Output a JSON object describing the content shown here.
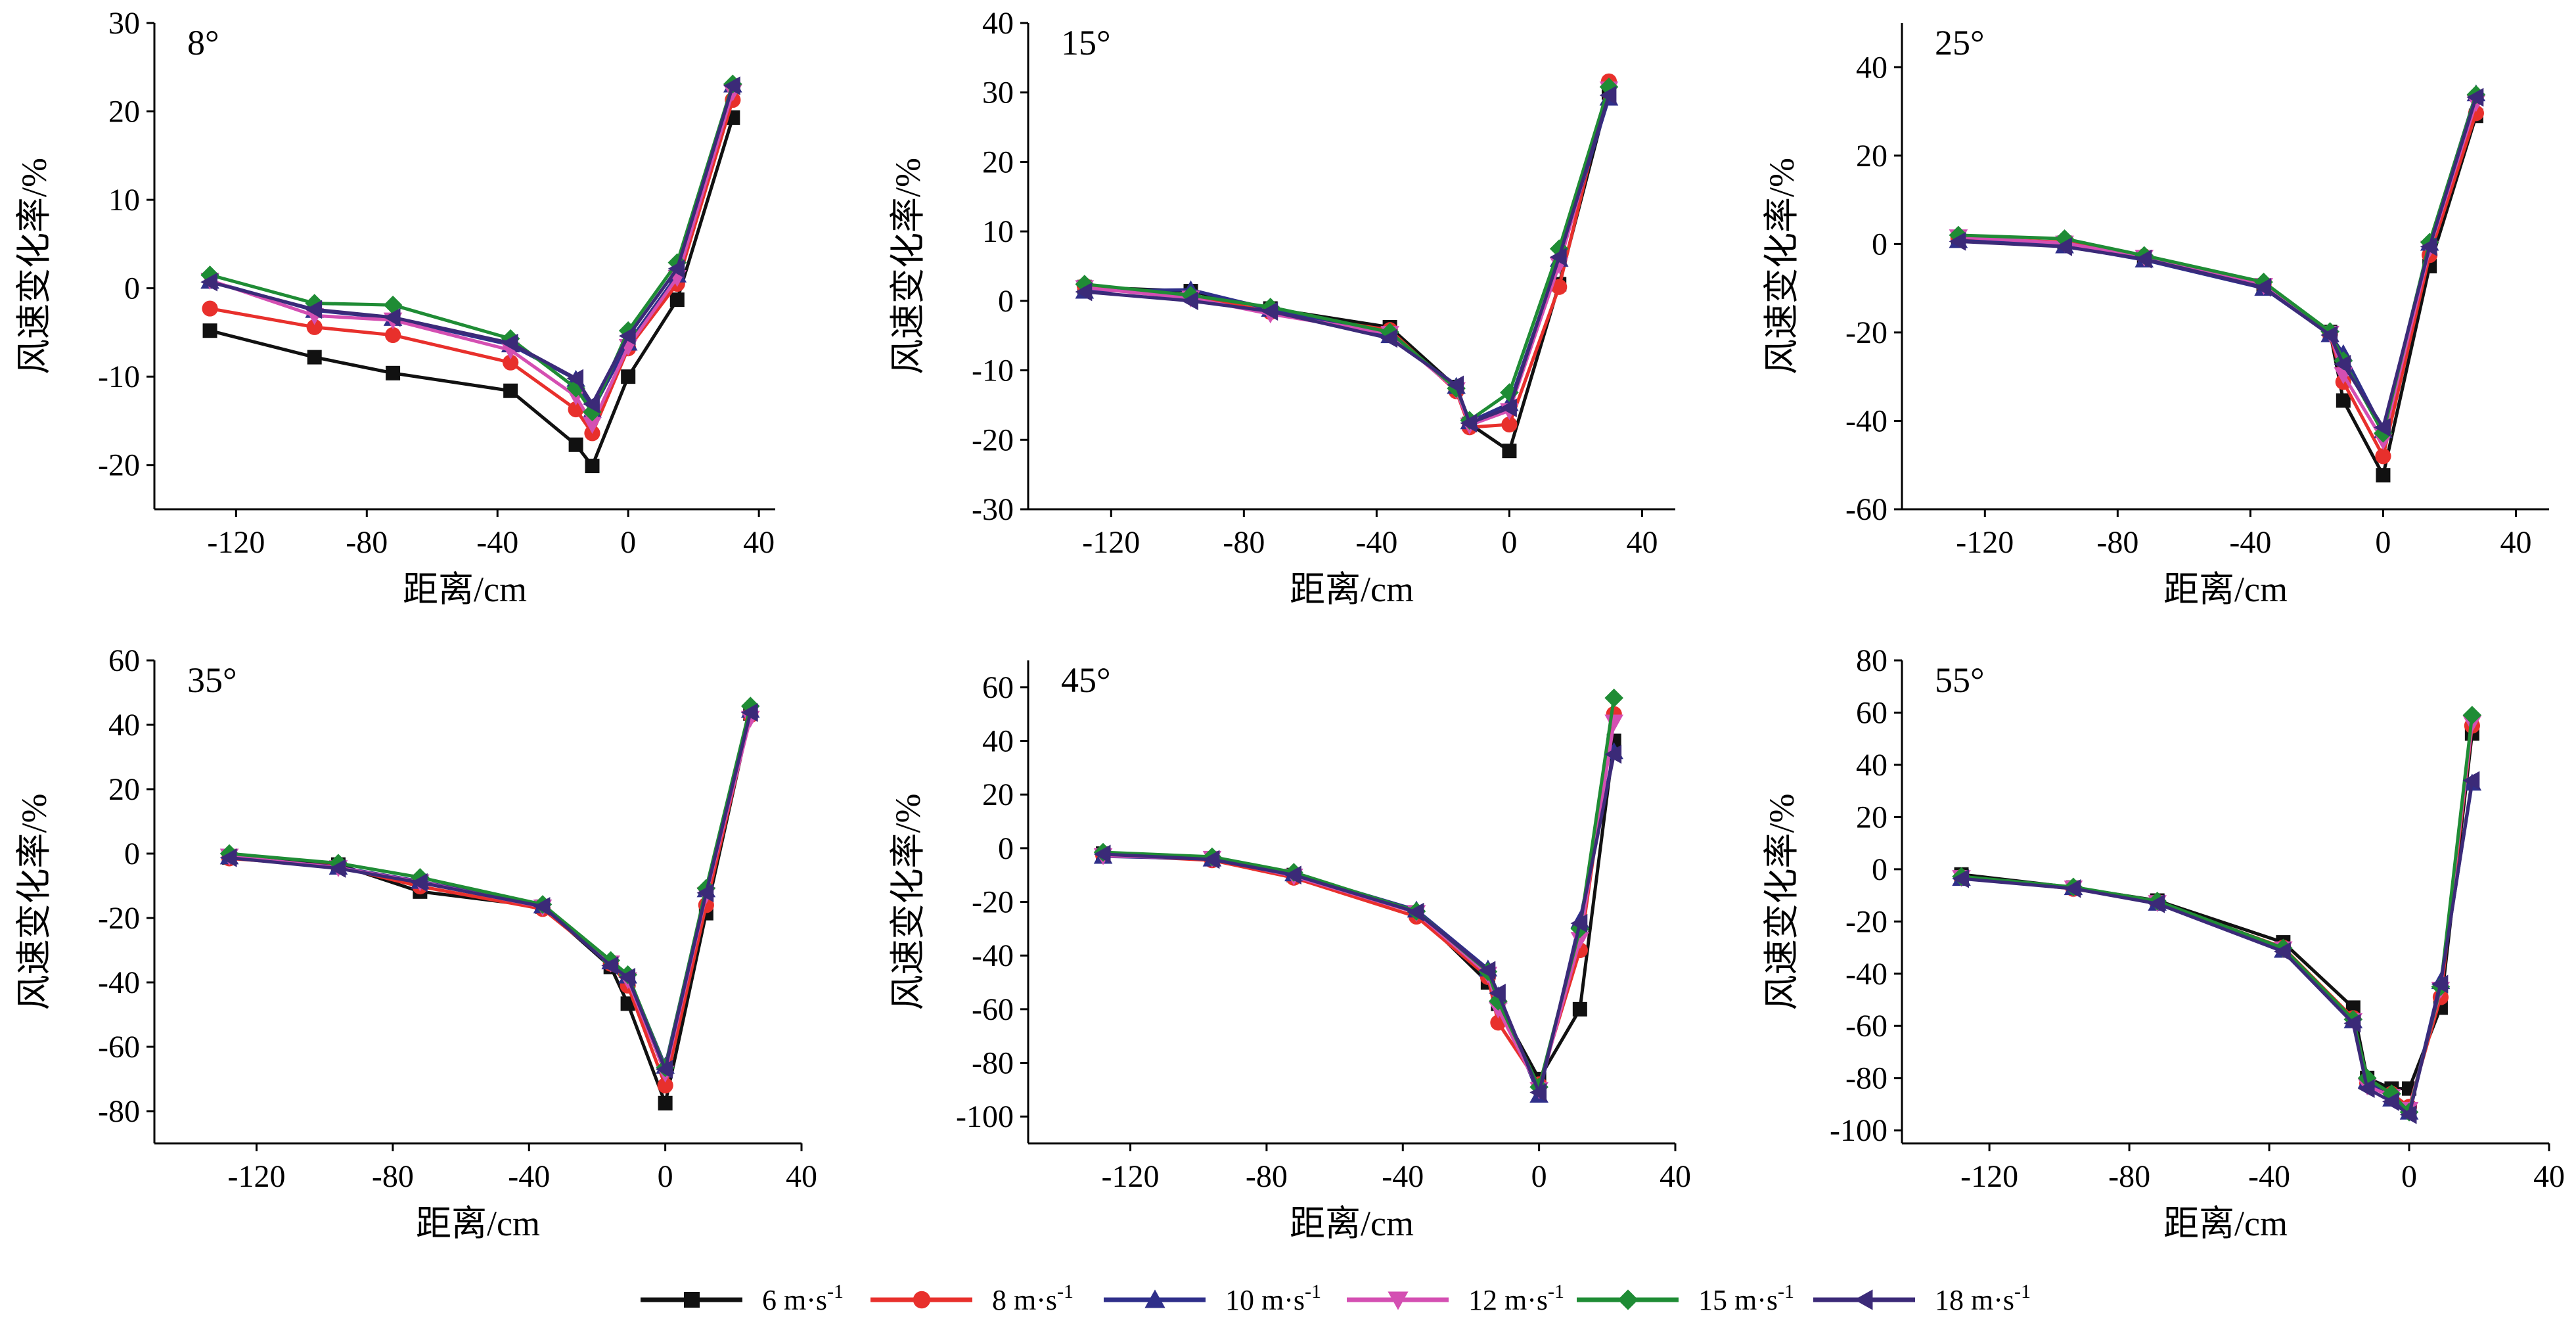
{
  "series_styles": [
    {
      "name": "6 m·s",
      "sup": "-1",
      "color": "#111111",
      "marker": "square"
    },
    {
      "name": "8 m·s",
      "sup": "-1",
      "color": "#e8302c",
      "marker": "circle"
    },
    {
      "name": "10 m·s",
      "sup": "-1",
      "color": "#2f2f8a",
      "marker": "triangle-up"
    },
    {
      "name": "12 m·s",
      "sup": "-1",
      "color": "#d44fb2",
      "marker": "triangle-down"
    },
    {
      "name": "15 m·s",
      "sup": "-1",
      "color": "#1f8c35",
      "marker": "diamond"
    },
    {
      "name": "18 m·s",
      "sup": "-1",
      "color": "#3b2a78",
      "marker": "triangle-left"
    }
  ],
  "chart_data": [
    {
      "type": "line",
      "angle_label": "8°",
      "xlabel": "距离/cm",
      "ylabel": "风速变化率/%",
      "xlim": [
        -145,
        45
      ],
      "ylim": [
        -25,
        30
      ],
      "xticks": [
        -120,
        -80,
        -40,
        0,
        40
      ],
      "yticks": [
        -20,
        -10,
        0,
        10,
        20,
        30
      ],
      "series": [
        {
          "x": [
            -128,
            -96,
            -72,
            -36,
            -16,
            -11,
            0,
            15,
            32
          ],
          "y": [
            -4.8,
            -7.8,
            -9.6,
            -11.6,
            -17.7,
            -20.1,
            -10,
            -1.3,
            19.3
          ]
        },
        {
          "x": [
            -128,
            -96,
            -72,
            -36,
            -16,
            -11,
            0,
            15,
            32
          ],
          "y": [
            -2.3,
            -4.4,
            -5.3,
            -8.4,
            -13.7,
            -16.4,
            -6.8,
            0.5,
            21.3
          ]
        },
        {
          "x": [
            -128,
            -96,
            -72,
            -36,
            -16,
            -11,
            0,
            15,
            32
          ],
          "y": [
            0.8,
            -2.5,
            -3.4,
            -6.4,
            -10.3,
            -13.8,
            -6.2,
            1.5,
            23
          ]
        },
        {
          "x": [
            -128,
            -96,
            -72,
            -36,
            -16,
            -11,
            0,
            15,
            32
          ],
          "y": [
            0.9,
            -3.1,
            -3.6,
            -7.0,
            -12.2,
            -15.4,
            -6.6,
            1.2,
            22.2
          ]
        },
        {
          "x": [
            -128,
            -96,
            -72,
            -36,
            -16,
            -11,
            0,
            15,
            32
          ],
          "y": [
            1.5,
            -1.7,
            -1.9,
            -5.7,
            -11.3,
            -14.0,
            -4.8,
            2.9,
            23.1
          ]
        },
        {
          "x": [
            -128,
            -96,
            -72,
            -36,
            -16,
            -11,
            0,
            15,
            32
          ],
          "y": [
            0.7,
            -2.4,
            -3.3,
            -6.2,
            -10.2,
            -13.1,
            -5.4,
            2.2,
            22.9
          ]
        }
      ]
    },
    {
      "type": "line",
      "angle_label": "15°",
      "xlabel": "距离/cm",
      "ylabel": "风速变化率/%",
      "xlim": [
        -145,
        50
      ],
      "ylim": [
        -30,
        40
      ],
      "xticks": [
        -120,
        -80,
        -40,
        0,
        40
      ],
      "yticks": [
        -30,
        -20,
        -10,
        0,
        10,
        20,
        30,
        40
      ],
      "series": [
        {
          "x": [
            -128,
            -96,
            -72,
            -36,
            -16,
            -12,
            0,
            15,
            30
          ],
          "y": [
            2,
            1.4,
            -1.1,
            -3.8,
            -12.4,
            -17.7,
            -21.6,
            2.4,
            30
          ]
        },
        {
          "x": [
            -128,
            -96,
            -72,
            -36,
            -16,
            -12,
            0,
            15,
            30
          ],
          "y": [
            2.2,
            0.8,
            -1.6,
            -4.2,
            -13.0,
            -18.2,
            -17.8,
            2.0,
            31.6
          ]
        },
        {
          "x": [
            -128,
            -96,
            -72,
            -36,
            -16,
            -12,
            0,
            15,
            30
          ],
          "y": [
            1.4,
            1.6,
            -1.2,
            -5.0,
            -12.3,
            -17.4,
            -14.8,
            6.0,
            29.2
          ]
        },
        {
          "x": [
            -128,
            -96,
            -72,
            -36,
            -16,
            -12,
            0,
            15,
            30
          ],
          "y": [
            1.9,
            0.4,
            -1.9,
            -4.7,
            -12.8,
            -17.9,
            -15.8,
            5.2,
            30.5
          ]
        },
        {
          "x": [
            -128,
            -96,
            -72,
            -36,
            -16,
            -12,
            0,
            15,
            30
          ],
          "y": [
            2.4,
            0.8,
            -0.9,
            -4.5,
            -12.6,
            -17.2,
            -13.2,
            7.5,
            30.8
          ]
        },
        {
          "x": [
            -128,
            -96,
            -72,
            -36,
            -16,
            -12,
            0,
            15,
            30
          ],
          "y": [
            1.3,
            0,
            -1.5,
            -5.4,
            -12.1,
            -17.6,
            -15.4,
            6.3,
            29.6
          ]
        }
      ]
    },
    {
      "type": "line",
      "angle_label": "25°",
      "xlabel": "距离/cm",
      "ylabel": "风速变化率/%",
      "xlim": [
        -145,
        50
      ],
      "ylim": [
        -60,
        50
      ],
      "xticks": [
        -120,
        -80,
        -40,
        0,
        40
      ],
      "yticks": [
        -60,
        -40,
        -20,
        0,
        20,
        40
      ],
      "series": [
        {
          "x": [
            -128,
            -96,
            -72,
            -36,
            -16,
            -12,
            0,
            14,
            28
          ],
          "y": [
            1,
            0.3,
            -3.2,
            -9.6,
            -19.9,
            -35.4,
            -52.3,
            -5.0,
            29
          ]
        },
        {
          "x": [
            -128,
            -96,
            -72,
            -36,
            -16,
            -12,
            0,
            14,
            28
          ],
          "y": [
            1.4,
            0.4,
            -2.8,
            -9.2,
            -20.4,
            -31.2,
            -48.0,
            -2.5,
            29.6
          ]
        },
        {
          "x": [
            -128,
            -96,
            -72,
            -36,
            -16,
            -12,
            0,
            14,
            28
          ],
          "y": [
            0.8,
            -0.4,
            -3.6,
            -10.0,
            -20.5,
            -24.8,
            -42.2,
            0.2,
            34.0
          ]
        },
        {
          "x": [
            -128,
            -96,
            -72,
            -36,
            -16,
            -12,
            0,
            14,
            28
          ],
          "y": [
            1.6,
            0.2,
            -3.0,
            -9.4,
            -20.2,
            -29.6,
            -44.5,
            -1.0,
            32.0
          ]
        },
        {
          "x": [
            -128,
            -96,
            -72,
            -36,
            -16,
            -12,
            0,
            14,
            28
          ],
          "y": [
            2.0,
            1.2,
            -2.6,
            -8.6,
            -19.8,
            -26.4,
            -42.8,
            0.4,
            33.8
          ]
        },
        {
          "x": [
            -128,
            -96,
            -72,
            -36,
            -16,
            -12,
            0,
            14,
            28
          ],
          "y": [
            0.6,
            -0.6,
            -3.4,
            -9.8,
            -20.6,
            -27.2,
            -41.5,
            -0.6,
            33.2
          ]
        }
      ]
    },
    {
      "type": "line",
      "angle_label": "35°",
      "xlabel": "距离/cm",
      "ylabel": "风速变化率/%",
      "xlim": [
        -150,
        40
      ],
      "ylim": [
        -90,
        60
      ],
      "xticks": [
        -120,
        -80,
        -40,
        0,
        40
      ],
      "yticks": [
        -80,
        -60,
        -40,
        -20,
        0,
        20,
        40,
        60
      ],
      "series": [
        {
          "x": [
            -128,
            -96,
            -72,
            -36,
            -16,
            -11,
            0,
            12,
            25
          ],
          "y": [
            -1.2,
            -3.4,
            -11.8,
            -16.5,
            -35.2,
            -46.6,
            -77.5,
            -18.5,
            43.5
          ]
        },
        {
          "x": [
            -128,
            -96,
            -72,
            -36,
            -16,
            -11,
            0,
            12,
            25
          ],
          "y": [
            -1.5,
            -4.0,
            -10.2,
            -17.2,
            -34.2,
            -41.0,
            -72.0,
            -16.0,
            43.0
          ]
        },
        {
          "x": [
            -128,
            -96,
            -72,
            -36,
            -16,
            -11,
            0,
            12,
            25
          ],
          "y": [
            -1.0,
            -4.2,
            -8.6,
            -16.2,
            -33.6,
            -38.0,
            -66.0,
            -11.2,
            44.5
          ]
        },
        {
          "x": [
            -128,
            -96,
            -72,
            -36,
            -16,
            -11,
            0,
            12,
            25
          ],
          "y": [
            -0.8,
            -4.4,
            -8.8,
            -16.6,
            -34.0,
            -39.2,
            -68.2,
            -12.8,
            42.0
          ]
        },
        {
          "x": [
            -128,
            -96,
            -72,
            -36,
            -16,
            -11,
            0,
            12,
            25
          ],
          "y": [
            0.0,
            -3.0,
            -7.4,
            -15.8,
            -33.2,
            -37.6,
            -66.5,
            -10.8,
            45.8
          ]
        },
        {
          "x": [
            -128,
            -96,
            -72,
            -36,
            -16,
            -11,
            0,
            12,
            25
          ],
          "y": [
            -1.3,
            -4.6,
            -9.0,
            -16.4,
            -34.8,
            -38.4,
            -67.0,
            -12.2,
            43.8
          ]
        }
      ]
    },
    {
      "type": "line",
      "angle_label": "45°",
      "xlabel": "距离/cm",
      "ylabel": "风速变化率/%",
      "xlim": [
        -150,
        40
      ],
      "ylim": [
        -110,
        70
      ],
      "xticks": [
        -120,
        -80,
        -40,
        0,
        40
      ],
      "yticks": [
        -100,
        -80,
        -60,
        -40,
        -20,
        0,
        20,
        40,
        60
      ],
      "series": [
        {
          "x": [
            -128,
            -96,
            -72,
            -36,
            -15,
            -12,
            0,
            12,
            22
          ],
          "y": [
            -2,
            -4,
            -10,
            -24,
            -50,
            -58,
            -86,
            -60,
            40
          ]
        },
        {
          "x": [
            -128,
            -96,
            -72,
            -36,
            -15,
            -12,
            0,
            12,
            22
          ],
          "y": [
            -2.5,
            -4.5,
            -11,
            -25.5,
            -48,
            -65,
            -88,
            -38,
            50
          ]
        },
        {
          "x": [
            -128,
            -96,
            -72,
            -36,
            -15,
            -12,
            0,
            12,
            22
          ],
          "y": [
            -3,
            -4,
            -9.5,
            -23,
            -45,
            -55,
            -92,
            -27,
            36
          ]
        },
        {
          "x": [
            -128,
            -96,
            -72,
            -36,
            -15,
            -12,
            0,
            12,
            22
          ],
          "y": [
            -2.8,
            -3.8,
            -10.4,
            -24,
            -47,
            -60,
            -90,
            -34,
            47
          ]
        },
        {
          "x": [
            -128,
            -96,
            -72,
            -36,
            -15,
            -12,
            0,
            12,
            22
          ],
          "y": [
            -1.5,
            -3.2,
            -9.0,
            -23.5,
            -46,
            -57,
            -89,
            -30,
            56
          ]
        },
        {
          "x": [
            -128,
            -96,
            -72,
            -36,
            -15,
            -12,
            0,
            12,
            22
          ],
          "y": [
            -2.2,
            -4.2,
            -10.0,
            -23.8,
            -45.5,
            -54,
            -91,
            -28,
            35
          ]
        }
      ]
    },
    {
      "type": "line",
      "angle_label": "55°",
      "xlabel": "距离/cm",
      "ylabel": "风速变化率/%",
      "xlim": [
        -145,
        40
      ],
      "ylim": [
        -105,
        80
      ],
      "xticks": [
        -120,
        -80,
        -40,
        0,
        40
      ],
      "yticks": [
        -100,
        -80,
        -60,
        -40,
        -20,
        0,
        20,
        40,
        60,
        80
      ],
      "series": [
        {
          "x": [
            -128,
            -96,
            -72,
            -36,
            -16,
            -12,
            -5,
            0,
            9,
            18
          ],
          "y": [
            -2,
            -7,
            -12,
            -28,
            -53,
            -80,
            -84,
            -84,
            -53,
            52
          ]
        },
        {
          "x": [
            -128,
            -96,
            -72,
            -36,
            -16,
            -12,
            -5,
            0,
            9,
            18
          ],
          "y": [
            -3,
            -7.5,
            -12.5,
            -30,
            -57,
            -82,
            -86,
            -91,
            -49,
            55
          ]
        },
        {
          "x": [
            -128,
            -96,
            -72,
            -36,
            -16,
            -12,
            -5,
            0,
            9,
            18
          ],
          "y": [
            -3.5,
            -7,
            -13,
            -31,
            -58,
            -81,
            -88,
            -93,
            -43,
            33
          ]
        },
        {
          "x": [
            -128,
            -96,
            -72,
            -36,
            -16,
            -12,
            -5,
            0,
            9,
            18
          ],
          "y": [
            -3.2,
            -7.2,
            -12.8,
            -30.5,
            -58,
            -83,
            -87,
            -92,
            -46,
            56
          ]
        },
        {
          "x": [
            -128,
            -96,
            -72,
            -36,
            -16,
            -12,
            -5,
            0,
            9,
            18
          ],
          "y": [
            -2.8,
            -6.8,
            -12.2,
            -30.2,
            -57.5,
            -80,
            -86,
            -93,
            -45,
            59
          ]
        },
        {
          "x": [
            -128,
            -96,
            -72,
            -36,
            -16,
            -12,
            -5,
            0,
            9,
            18
          ],
          "y": [
            -3.6,
            -7.4,
            -13.2,
            -31.5,
            -59,
            -84,
            -89,
            -94,
            -44,
            34
          ]
        }
      ]
    }
  ]
}
